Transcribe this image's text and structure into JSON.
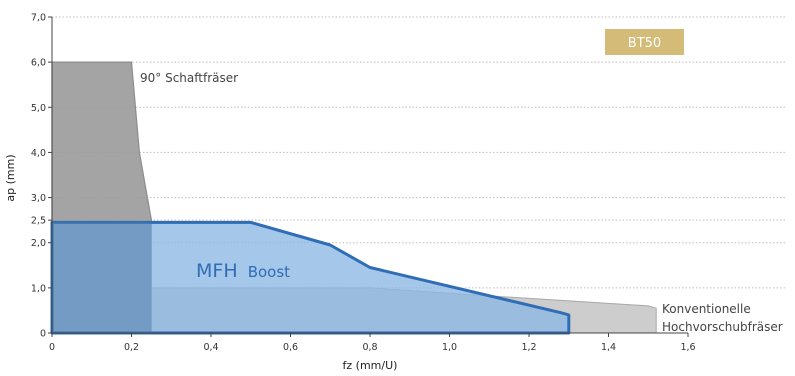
{
  "chart_data": {
    "type": "area",
    "xlabel": "fz (mm/U)",
    "ylabel": "ap (mm)",
    "xlim": [
      0,
      1.6
    ],
    "ylim": [
      0,
      7.0
    ],
    "x_ticks": [
      {
        "value": 0,
        "label": "0"
      },
      {
        "value": 0.2,
        "label": "0,2"
      },
      {
        "value": 0.4,
        "label": "0,4"
      },
      {
        "value": 0.6,
        "label": "0,6"
      },
      {
        "value": 0.8,
        "label": "0,8"
      },
      {
        "value": 1.0,
        "label": "1,0"
      },
      {
        "value": 1.2,
        "label": "1,2"
      },
      {
        "value": 1.4,
        "label": "1,4"
      },
      {
        "value": 1.6,
        "label": "1,6"
      }
    ],
    "y_ticks": [
      {
        "value": 0,
        "label": "0"
      },
      {
        "value": 1.0,
        "label": "1,0"
      },
      {
        "value": 2.0,
        "label": "2,0"
      },
      {
        "value": 2.5,
        "label": "2,5"
      },
      {
        "value": 3.0,
        "label": "3,0"
      },
      {
        "value": 4.0,
        "label": "4,0"
      },
      {
        "value": 5.0,
        "label": "5,0"
      },
      {
        "value": 6.0,
        "label": "6,0"
      },
      {
        "value": 7.0,
        "label": "7,0"
      }
    ],
    "grid": "horizontal dotted",
    "badge": {
      "text": "BT50",
      "color": "#d4bb78"
    },
    "series": [
      {
        "key": "schaftfraeser",
        "name": "90° Schaftfräser",
        "color": "#8c8c8c",
        "fill": "#9a9a9a",
        "x": [
          0,
          0,
          0.2,
          0.22,
          0.24,
          0.25,
          0.25,
          0
        ],
        "y": [
          0,
          6.0,
          6.0,
          4.0,
          3.0,
          2.5,
          0,
          0
        ]
      },
      {
        "key": "konventionell",
        "name_lines": [
          "Konventionelle",
          "Hochvorschubfräser"
        ],
        "color": "#a8a8a8",
        "fill": "#cdcdcd",
        "x": [
          0,
          0,
          0.8,
          1.05,
          1.5,
          1.52,
          1.52,
          0
        ],
        "y": [
          0,
          1.0,
          1.0,
          0.85,
          0.6,
          0.55,
          0,
          0
        ]
      },
      {
        "key": "mfh_boost",
        "name_main": "MFH",
        "name_sub": "Boost",
        "color": "#2f6db5",
        "fill": "#8cb7e4",
        "x": [
          0,
          0,
          0.5,
          0.7,
          0.8,
          1.28,
          1.3,
          1.3,
          0
        ],
        "y": [
          0,
          2.45,
          2.45,
          1.95,
          1.45,
          0.45,
          0.4,
          0,
          0
        ]
      }
    ]
  }
}
